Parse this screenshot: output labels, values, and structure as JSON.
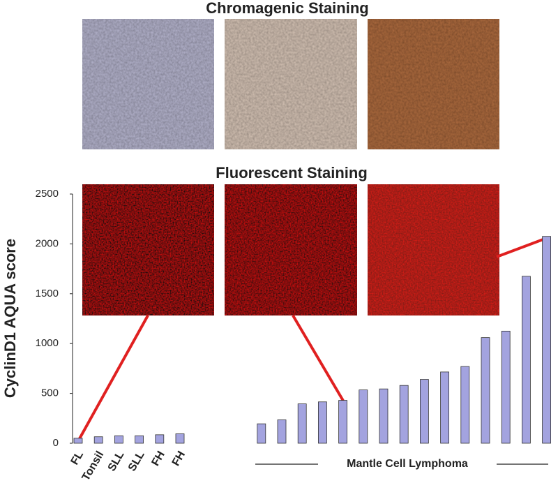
{
  "chart_data": {
    "type": "bar",
    "annotations": [
      "Chromagenic Staining",
      "Fluorescent Staining",
      "Mantle Cell Lymphoma"
    ],
    "y_label": "CyclinD1 AQUA score",
    "categories": [
      "FL",
      "Tonsil",
      "SLL",
      "SLL",
      "FH",
      "FH",
      null,
      null,
      null,
      null,
      null,
      null,
      null,
      null,
      null,
      null,
      null,
      null,
      null,
      null,
      null,
      null,
      null,
      null
    ],
    "values": [
      50,
      65,
      75,
      75,
      85,
      95,
      null,
      null,
      null,
      195,
      235,
      395,
      415,
      430,
      535,
      545,
      580,
      640,
      715,
      770,
      1060,
      1125,
      1675,
      2075
    ],
    "color": "#a3a3df",
    "ylim": [
      0,
      2500
    ],
    "yticks": [
      0,
      500,
      1000,
      1500,
      2000,
      2500
    ],
    "grid": false
  }
}
